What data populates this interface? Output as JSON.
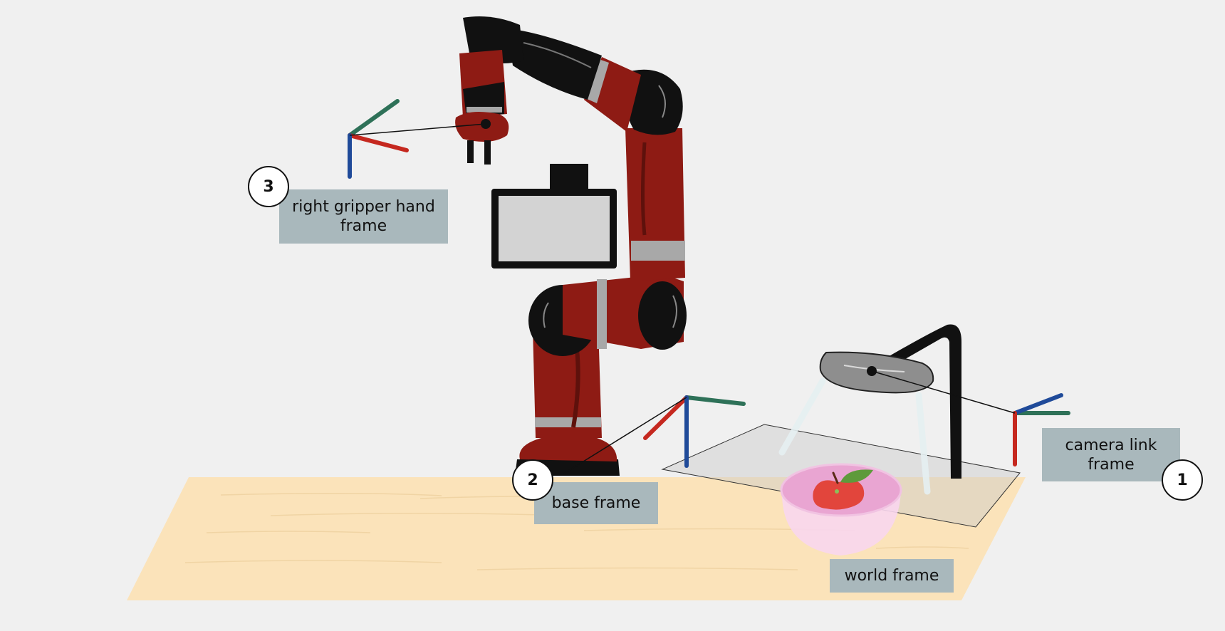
{
  "labels": {
    "gripper": {
      "line1": "right gripper hand",
      "line2": "frame",
      "number": "3"
    },
    "base": {
      "text": "base frame",
      "number": "2"
    },
    "camera": {
      "line1": "camera link",
      "line2": "frame",
      "number": "1"
    },
    "world": {
      "text": "world frame"
    }
  },
  "colors": {
    "background": "#f0f0f0",
    "table": "#fbe3ba",
    "robot_red": "#8e1b14",
    "robot_black": "#111111",
    "robot_gray": "#a8a8a8",
    "label_box": "#a9b8bc",
    "axis_red": "#c5281f",
    "axis_green": "#2e7158",
    "axis_blue": "#1f4a99",
    "bowl": "#f2b8e0",
    "apple": "#e2453c"
  },
  "icons": [
    "robot-arm-icon",
    "overhead-camera-icon",
    "apple-icon",
    "bowl-icon"
  ]
}
